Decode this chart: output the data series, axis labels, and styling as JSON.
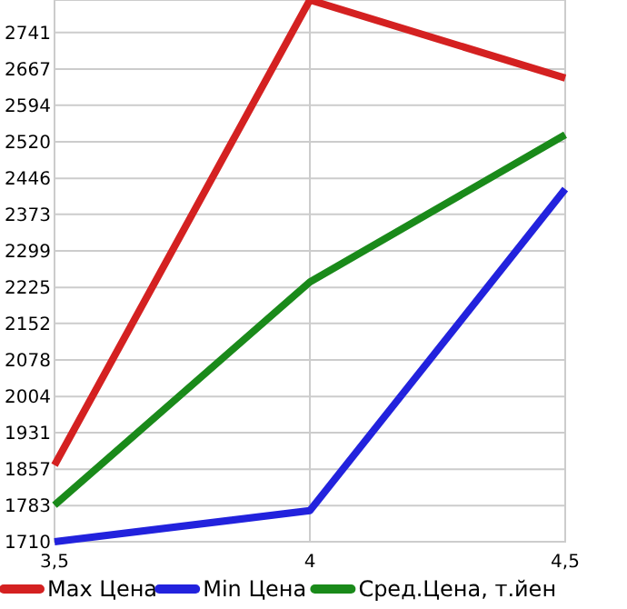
{
  "chart_data": {
    "type": "line",
    "x": [
      3.5,
      4,
      4.5
    ],
    "xlim": [
      3.5,
      4.5
    ],
    "xticks": [
      {
        "value": 3.5,
        "label": "3,5"
      },
      4,
      {
        "value": 4.5,
        "label": "4,5"
      }
    ],
    "ylim": [
      1710,
      2807
    ],
    "yticks": [
      1710,
      1783,
      1857,
      1931,
      2004,
      2078,
      2152,
      2225,
      2299,
      2373,
      2446,
      2520,
      2594,
      2667,
      2741
    ],
    "grid": true,
    "legend": "bottom",
    "marker": "none",
    "line_style": "solid",
    "series": [
      {
        "name": "Max Цена",
        "color": "#d42121",
        "values": [
          1865,
          2807,
          2649
        ]
      },
      {
        "name": "Min Цена",
        "color": "#2222dd",
        "values": [
          1710,
          1773,
          2424
        ]
      },
      {
        "name": "Сред.Цена, т.йен",
        "color": "#1a8a1a",
        "values": [
          1784,
          2236,
          2534
        ]
      }
    ]
  }
}
